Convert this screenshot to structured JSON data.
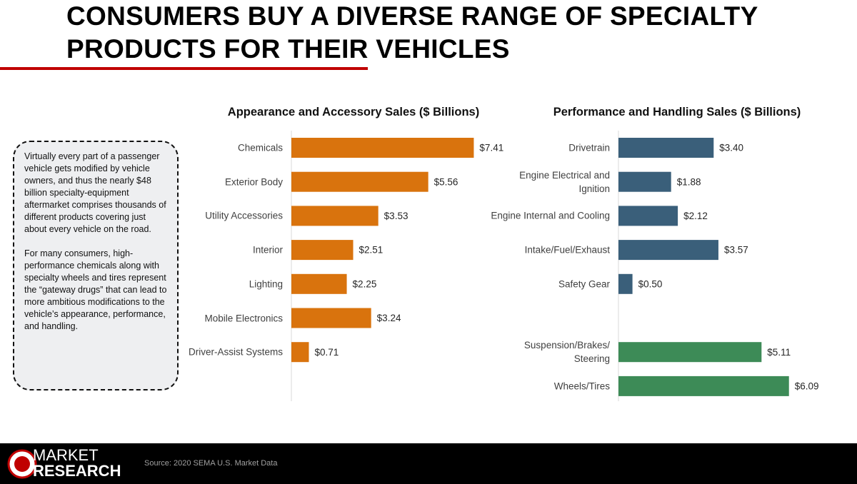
{
  "title": [
    "CONSUMERS BUY A DIVERSE RANGE OF SPECIALTY",
    "PRODUCTS FOR THEIR VEHICLES"
  ],
  "callout": [
    "Virtually every part of a passenger vehicle gets modified by vehicle owners, and thus the nearly $48 billion specialty-equipment aftermarket comprises thousands of different products covering just about every vehicle on the road.",
    "For many consumers, high-performance chemicals along with specialty wheels and tires represent the “gateway drugs” that can lead to more ambitious modifications to the vehicle’s appearance, performance, and handling."
  ],
  "source": "Source: 2020 SEMA U.S. Market Data",
  "logo": [
    "MARKET",
    "RESEARCH"
  ],
  "chart_data": [
    {
      "type": "hbar",
      "title": "Appearance and Accessory Sales ($ Billions)",
      "categories": [
        "Chemicals",
        "Exterior Body",
        "Utility Accessories",
        "Interior",
        "Lighting",
        "Mobile Electronics",
        "Driver-Assist Systems"
      ],
      "values": [
        7.41,
        5.56,
        3.53,
        2.51,
        2.25,
        3.24,
        0.71
      ],
      "value_labels": [
        "$7.41",
        "$5.56",
        "$3.53",
        "$2.51",
        "$2.25",
        "$3.24",
        "$0.71"
      ],
      "color": "#d9730d",
      "xlim": [
        0,
        8.5
      ]
    },
    {
      "type": "hbar",
      "title": "Performance and Handling Sales ($ Billions)",
      "categories": [
        "Drivetrain",
        "Engine Electrical and Ignition",
        "Engine Internal and Cooling",
        "Intake/Fuel/Exhaust",
        "Safety Gear",
        null,
        "Suspension/Brakes/ Steering",
        "Wheels/Tires"
      ],
      "values": [
        3.4,
        1.88,
        2.12,
        3.57,
        0.5,
        null,
        5.11,
        6.09
      ],
      "value_labels": [
        "$3.40",
        "$1.88",
        "$2.12",
        "$3.57",
        "$0.50",
        null,
        "$5.11",
        "$6.09"
      ],
      "colors": [
        "#3a5f7a",
        "#3a5f7a",
        "#3a5f7a",
        "#3a5f7a",
        "#3a5f7a",
        null,
        "#3d8b57",
        "#3d8b57"
      ],
      "xlim": [
        0,
        7.5
      ]
    }
  ]
}
